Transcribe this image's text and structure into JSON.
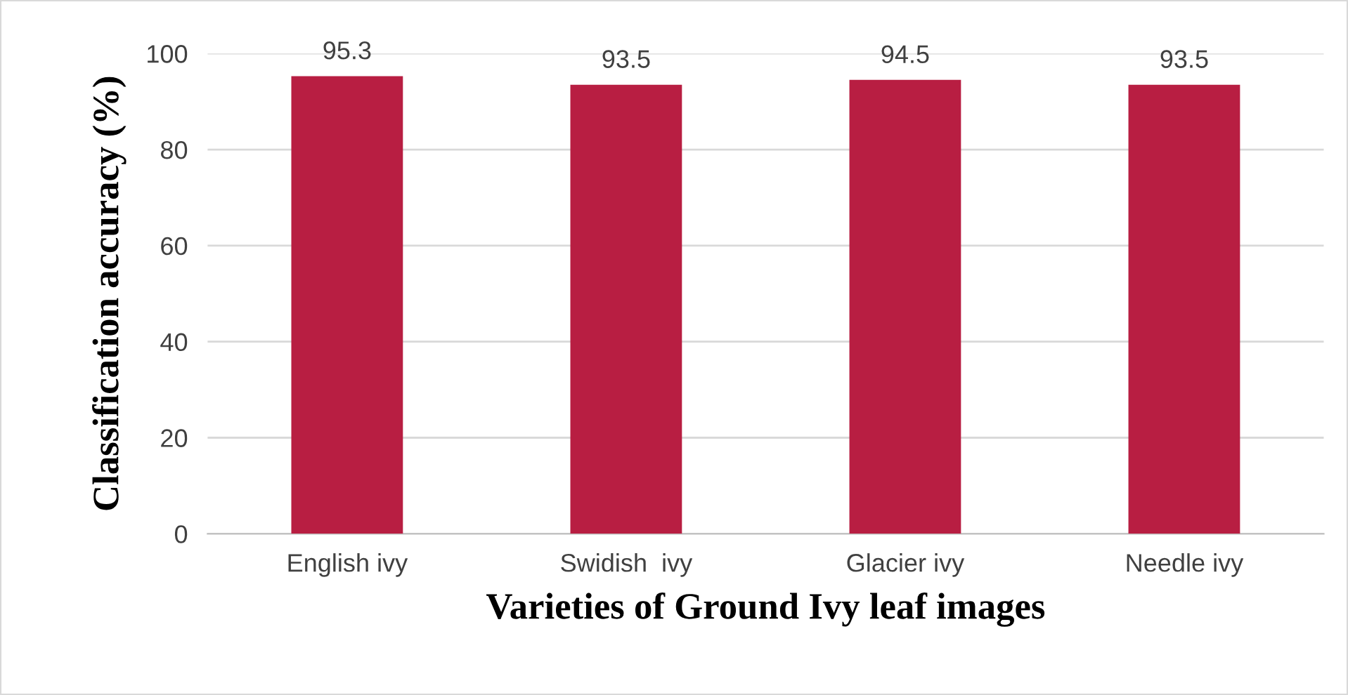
{
  "chart_data": {
    "type": "bar",
    "xlabel": "Varieties of Ground Ivy leaf images",
    "ylabel": "Classification accuracy (%)",
    "categories": [
      "English ivy",
      "Swidish  ivy",
      "Glacier ivy",
      "Needle ivy"
    ],
    "values": [
      95.3,
      93.5,
      94.5,
      93.5
    ],
    "color": "#b81e42",
    "ylim": [
      0,
      100
    ],
    "yticks": [
      0,
      20,
      40,
      60,
      80,
      100
    ],
    "grid": "y",
    "data_labels": true
  }
}
